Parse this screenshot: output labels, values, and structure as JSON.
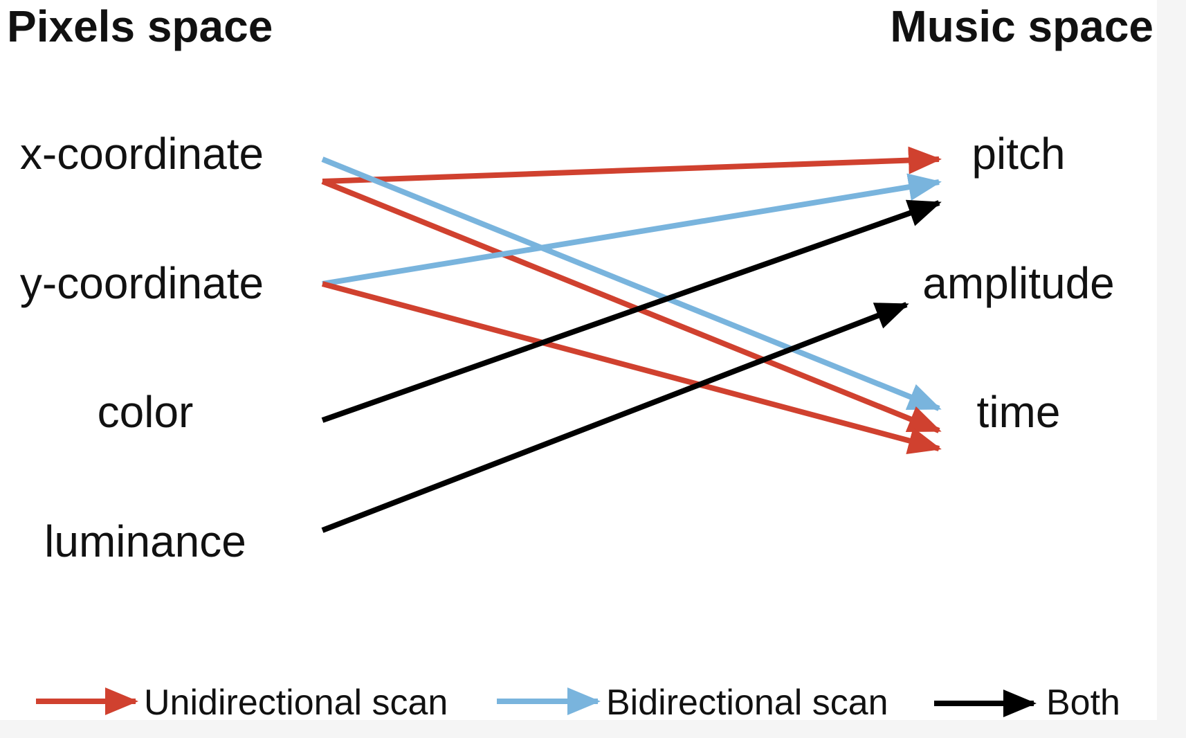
{
  "titles": {
    "left": "Pixels space",
    "right": "Music space"
  },
  "pixel_features": [
    "x-coordinate",
    "y-coordinate",
    "color",
    "luminance"
  ],
  "music_features": [
    "pitch",
    "amplitude",
    "time"
  ],
  "colors": {
    "unidirectional": "#d0412f",
    "bidirectional": "#79b4dd",
    "both": "#000000"
  },
  "mappings": [
    {
      "from": "x-coordinate",
      "to": "pitch",
      "scan": "unidirectional"
    },
    {
      "from": "x-coordinate",
      "to": "time",
      "scan": "bidirectional"
    },
    {
      "from": "x-coordinate",
      "to": "time",
      "scan": "unidirectional"
    },
    {
      "from": "y-coordinate",
      "to": "pitch",
      "scan": "bidirectional"
    },
    {
      "from": "y-coordinate",
      "to": "time",
      "scan": "unidirectional"
    },
    {
      "from": "color",
      "to": "pitch",
      "scan": "both"
    },
    {
      "from": "luminance",
      "to": "amplitude",
      "scan": "both"
    }
  ],
  "legend": [
    {
      "scan": "unidirectional",
      "label": "Unidirectional scan"
    },
    {
      "scan": "bidirectional",
      "label": "Bidirectional scan"
    },
    {
      "scan": "both",
      "label": "Both"
    }
  ]
}
